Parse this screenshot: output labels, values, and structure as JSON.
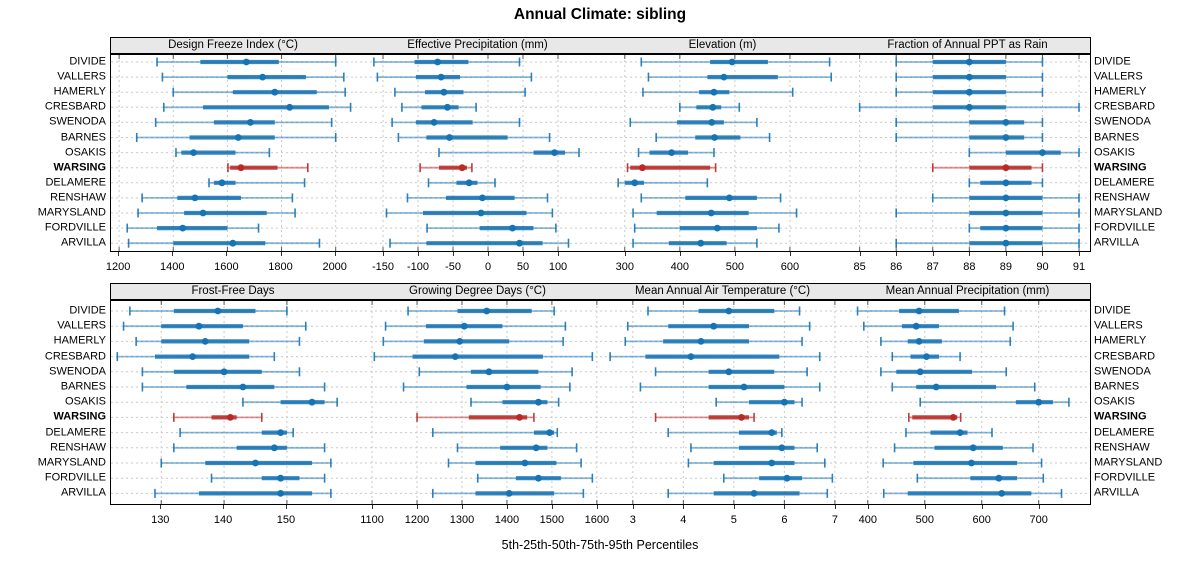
{
  "chart_data": {
    "type": "scatter",
    "subtype": "percentile-interval-trellis (5th-25th-50th-75th-95th whisker/bar/dot per row)",
    "title": "Annual Climate: sibling",
    "xlabel": "5th-25th-50th-75th-95th Percentiles",
    "legend_position": "none",
    "grid": "dashed",
    "categories": [
      "DIVIDE",
      "VALLERS",
      "HAMERLY",
      "CRESBARD",
      "SWENODA",
      "BARNES",
      "OSAKIS",
      "WARSING",
      "DELAMERE",
      "RENSHAW",
      "MARYSLAND",
      "FORDVILLE",
      "ARVILLA"
    ],
    "highlight_category": "WARSING",
    "colors": {
      "series_blue": "#1673b4",
      "highlight_red": "#b92a26",
      "grid_gray": "#c9c9c9",
      "header_bg": "#e8e8e8",
      "tick_color": "#333333"
    },
    "panels": [
      {
        "title": "Design Freeze Index (°C)",
        "xlim": [
          1170,
          2075
        ],
        "ticks": [
          1200,
          1400,
          1600,
          1800,
          2000
        ],
        "values": [
          [
            1340,
            1500,
            1670,
            1790,
            2000
          ],
          [
            1360,
            1600,
            1730,
            1890,
            2030
          ],
          [
            1400,
            1620,
            1775,
            1930,
            2035
          ],
          [
            1365,
            1510,
            1830,
            1975,
            2055
          ],
          [
            1335,
            1550,
            1685,
            1775,
            1985
          ],
          [
            1265,
            1460,
            1640,
            1775,
            2000
          ],
          [
            1410,
            1430,
            1475,
            1630,
            1755
          ],
          [
            1602,
            1610,
            1650,
            1785,
            1897
          ],
          [
            1532,
            1550,
            1580,
            1630,
            1885
          ],
          [
            1285,
            1415,
            1480,
            1650,
            1840
          ],
          [
            1270,
            1440,
            1510,
            1745,
            1850
          ],
          [
            1230,
            1340,
            1435,
            1600,
            1715
          ],
          [
            1235,
            1400,
            1620,
            1740,
            1940
          ]
        ]
      },
      {
        "title": "Effective Precipitation (mm)",
        "xlim": [
          -190,
          160
        ],
        "ticks": [
          -150,
          -100,
          -50,
          0,
          50,
          100
        ],
        "values": [
          [
            -163,
            -105,
            -72,
            -28,
            45
          ],
          [
            -158,
            -103,
            -67,
            -40,
            62
          ],
          [
            -133,
            -90,
            -63,
            -35,
            53
          ],
          [
            -123,
            -95,
            -58,
            -42,
            -17
          ],
          [
            -137,
            -103,
            -77,
            -22,
            45
          ],
          [
            -128,
            -88,
            -55,
            28,
            88
          ],
          [
            -70,
            65,
            95,
            110,
            130
          ],
          [
            -97,
            -70,
            -37,
            -30,
            -23
          ],
          [
            -85,
            -45,
            -27,
            -15,
            10
          ],
          [
            -115,
            -60,
            -8,
            38,
            85
          ],
          [
            -145,
            -93,
            -10,
            55,
            92
          ],
          [
            -87,
            -12,
            35,
            65,
            97
          ],
          [
            -140,
            -88,
            45,
            78,
            115
          ]
        ]
      },
      {
        "title": "Elevation (m)",
        "xlim": [
          255,
          700
        ],
        "ticks": [
          300,
          400,
          500,
          600
        ],
        "values": [
          [
            330,
            455,
            495,
            560,
            672
          ],
          [
            343,
            450,
            480,
            578,
            675
          ],
          [
            333,
            435,
            462,
            490,
            605
          ],
          [
            400,
            430,
            460,
            475,
            508
          ],
          [
            310,
            395,
            458,
            480,
            540
          ],
          [
            357,
            428,
            463,
            510,
            563
          ],
          [
            325,
            345,
            385,
            415,
            462
          ],
          [
            305,
            310,
            332,
            455,
            465
          ],
          [
            288,
            300,
            318,
            335,
            450
          ],
          [
            330,
            410,
            490,
            540,
            583
          ],
          [
            315,
            358,
            457,
            525,
            612
          ],
          [
            318,
            400,
            468,
            540,
            580
          ],
          [
            315,
            380,
            438,
            485,
            540
          ]
        ]
      },
      {
        "title": "Fraction of Annual PPT as Rain",
        "xlim": [
          84.6,
          91.3
        ],
        "ticks": [
          85,
          86,
          87,
          88,
          89,
          90,
          91
        ],
        "values": [
          [
            86,
            87,
            88,
            89,
            90
          ],
          [
            86,
            87,
            88,
            89,
            90
          ],
          [
            86,
            87,
            88,
            89,
            90
          ],
          [
            85,
            87,
            88,
            89,
            91
          ],
          [
            86,
            88,
            89,
            89.5,
            90
          ],
          [
            86,
            88,
            89,
            89.5,
            90
          ],
          [
            88,
            89,
            90,
            90.5,
            91
          ],
          [
            87,
            88,
            89,
            89.7,
            90
          ],
          [
            88,
            88.3,
            89,
            89.7,
            90
          ],
          [
            87,
            88,
            89,
            90,
            91
          ],
          [
            86,
            88,
            89,
            90,
            91
          ],
          [
            88,
            88.3,
            89,
            90,
            91
          ],
          [
            86,
            88,
            89,
            90,
            91
          ]
        ]
      },
      {
        "title": "Frost-Free Days",
        "xlim": [
          122,
          161
        ],
        "ticks": [
          130,
          140,
          150
        ],
        "values": [
          [
            125,
            132,
            139,
            145,
            150
          ],
          [
            124,
            130,
            136,
            143,
            153
          ],
          [
            126,
            130,
            137,
            144,
            152
          ],
          [
            123,
            129,
            135,
            144,
            148
          ],
          [
            127,
            132,
            140,
            146,
            152
          ],
          [
            127,
            134,
            143,
            148,
            156
          ],
          [
            143,
            149,
            154,
            156,
            158
          ],
          [
            132,
            138,
            141,
            142,
            146
          ],
          [
            133,
            146,
            149,
            150,
            151
          ],
          [
            132,
            142,
            148,
            150,
            156
          ],
          [
            130,
            137,
            145,
            154,
            157
          ],
          [
            138,
            146,
            149,
            152,
            156
          ],
          [
            129,
            136,
            149,
            154,
            157
          ]
        ]
      },
      {
        "title": "Growing Degree Days (°C)",
        "xlim": [
          1062,
          1607
        ],
        "ticks": [
          1100,
          1200,
          1300,
          1400,
          1500,
          1600
        ],
        "values": [
          [
            1180,
            1290,
            1355,
            1455,
            1505
          ],
          [
            1130,
            1220,
            1305,
            1390,
            1530
          ],
          [
            1125,
            1215,
            1295,
            1405,
            1525
          ],
          [
            1105,
            1190,
            1285,
            1480,
            1590
          ],
          [
            1205,
            1320,
            1360,
            1470,
            1545
          ],
          [
            1170,
            1310,
            1400,
            1475,
            1540
          ],
          [
            1320,
            1390,
            1470,
            1490,
            1515
          ],
          [
            1200,
            1315,
            1428,
            1445,
            1460
          ],
          [
            1235,
            1460,
            1495,
            1505,
            1512
          ],
          [
            1290,
            1385,
            1465,
            1490,
            1555
          ],
          [
            1270,
            1330,
            1440,
            1510,
            1565
          ],
          [
            1335,
            1420,
            1470,
            1520,
            1590
          ],
          [
            1235,
            1330,
            1405,
            1505,
            1570
          ]
        ]
      },
      {
        "title": "Mean Annual Air Temperature (°C)",
        "xlim": [
          2.35,
          7.2
        ],
        "ticks": [
          3,
          4,
          5,
          6,
          7
        ],
        "values": [
          [
            3.3,
            4.3,
            4.9,
            5.8,
            6.3
          ],
          [
            2.9,
            3.7,
            4.6,
            5.3,
            6.5
          ],
          [
            2.85,
            3.6,
            4.35,
            5.3,
            6.35
          ],
          [
            2.55,
            3.25,
            4.15,
            5.9,
            6.7
          ],
          [
            3.45,
            4.5,
            4.9,
            5.8,
            6.45
          ],
          [
            3.15,
            4.5,
            5.2,
            6.0,
            6.7
          ],
          [
            4.65,
            5.3,
            6.0,
            6.2,
            6.35
          ],
          [
            3.45,
            4.5,
            5.15,
            5.3,
            5.4
          ],
          [
            3.7,
            5.1,
            5.75,
            5.85,
            5.95
          ],
          [
            4.15,
            5.1,
            5.95,
            6.2,
            6.65
          ],
          [
            4.1,
            4.6,
            5.75,
            6.2,
            6.8
          ],
          [
            4.8,
            5.5,
            6.05,
            6.35,
            6.95
          ],
          [
            3.7,
            4.6,
            5.4,
            6.3,
            6.85
          ]
        ]
      },
      {
        "title": "Mean Annual Precipitation (mm)",
        "xlim": [
          360,
          790
        ],
        "ticks": [
          400,
          500,
          600,
          700
        ],
        "values": [
          [
            382,
            455,
            490,
            560,
            640
          ],
          [
            393,
            460,
            485,
            525,
            655
          ],
          [
            423,
            470,
            490,
            530,
            650
          ],
          [
            443,
            475,
            503,
            525,
            562
          ],
          [
            423,
            450,
            492,
            583,
            643
          ],
          [
            443,
            485,
            520,
            625,
            693
          ],
          [
            492,
            660,
            700,
            725,
            753
          ],
          [
            472,
            478,
            550,
            557,
            563
          ],
          [
            467,
            510,
            562,
            575,
            618
          ],
          [
            447,
            517,
            585,
            637,
            690
          ],
          [
            427,
            480,
            582,
            662,
            705
          ],
          [
            487,
            580,
            630,
            662,
            708
          ],
          [
            428,
            470,
            635,
            687,
            740
          ]
        ]
      }
    ]
  }
}
